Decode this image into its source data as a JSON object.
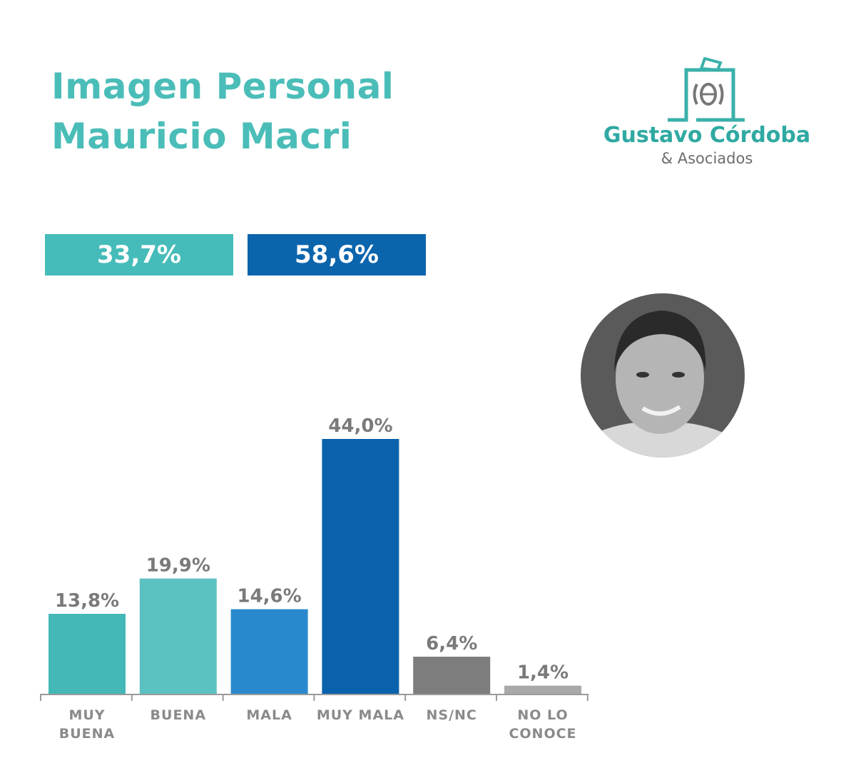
{
  "header": {
    "title_line1": "Imagen Personal",
    "title_line2": "Mauricio Macri"
  },
  "logo": {
    "name": "Gustavo Córdoba",
    "subtitle": "& Asociados",
    "icon": "ballot-box-icon"
  },
  "summary": [
    {
      "label": "33,7%",
      "color": "#45bcb9"
    },
    {
      "label": "58,6%",
      "color": "#0b65ad"
    }
  ],
  "photo": {
    "icon": "portrait-photo"
  },
  "chart_data": {
    "type": "bar",
    "categories": [
      [
        "MUY",
        "BUENA"
      ],
      [
        "BUENA"
      ],
      [
        "MALA"
      ],
      [
        "MUY MALA"
      ],
      [
        "NS/NC"
      ],
      [
        "NO LO",
        "CONOCE"
      ]
    ],
    "values": [
      13.8,
      19.9,
      14.6,
      44.0,
      6.4,
      1.4
    ],
    "value_labels": [
      "13,8%",
      "19,9%",
      "14,6%",
      "44,0%",
      "6,4%",
      "1,4%"
    ],
    "colors": [
      "#43b8b6",
      "#5bc1c1",
      "#2a89cc",
      "#0b62ac",
      "#7d7d7d",
      "#a9a9a9"
    ],
    "ylim": [
      0,
      44
    ],
    "grid": false,
    "legend": "none"
  }
}
